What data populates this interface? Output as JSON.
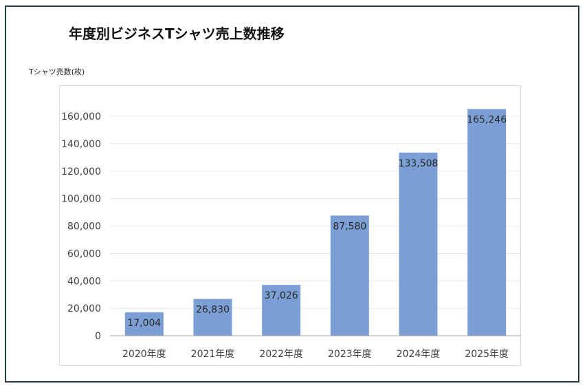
{
  "chart_data": {
    "type": "bar",
    "title": "年度別ビジネスTシャツ売上数推移",
    "ylabel": "Tシャツ売数(枚)",
    "xlabel": "",
    "categories": [
      "2020年度",
      "2021年度",
      "2022年度",
      "2023年度",
      "2024年度",
      "2025年度"
    ],
    "values": [
      17004,
      26830,
      37026,
      87580,
      133508,
      165246
    ],
    "value_labels": [
      "17,004",
      "26,830",
      "37,026",
      "87,580",
      "133,508",
      "165,246"
    ],
    "ylim": [
      0,
      160000
    ],
    "yticks": [
      0,
      20000,
      40000,
      60000,
      80000,
      100000,
      120000,
      140000,
      160000
    ],
    "ytick_labels": [
      "0",
      "20,000",
      "40,000",
      "60,000",
      "80,000",
      "100,000",
      "120,000",
      "140,000",
      "160,000"
    ],
    "bar_color": "#7b9fd4",
    "grid": true,
    "legend": "none"
  }
}
